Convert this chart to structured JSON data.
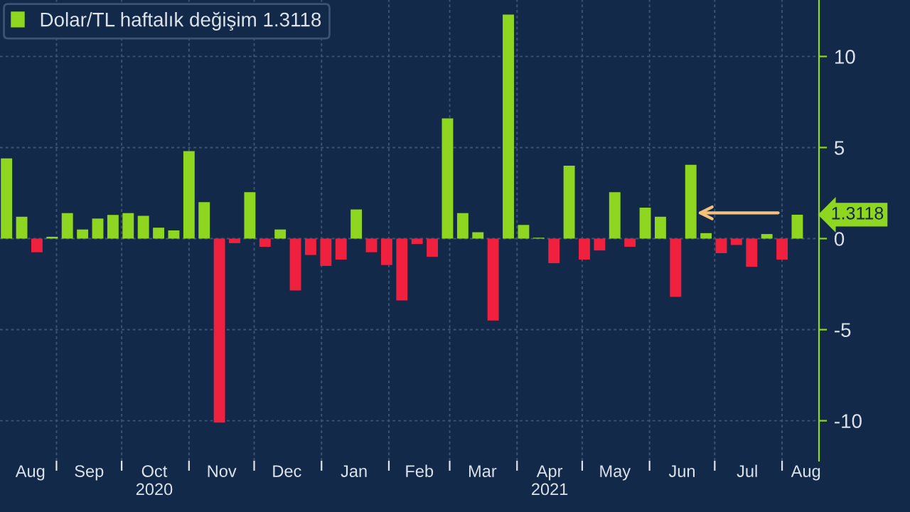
{
  "chart_data": {
    "type": "bar",
    "x": [
      "2020-08-09",
      "2020-08-16",
      "2020-08-23",
      "2020-08-30",
      "2020-09-06",
      "2020-09-13",
      "2020-09-20",
      "2020-09-27",
      "2020-10-04",
      "2020-10-11",
      "2020-10-18",
      "2020-10-25",
      "2020-11-01",
      "2020-11-08",
      "2020-11-15",
      "2020-11-22",
      "2020-11-29",
      "2020-12-06",
      "2020-12-13",
      "2020-12-20",
      "2020-12-27",
      "2021-01-03",
      "2021-01-10",
      "2021-01-17",
      "2021-01-24",
      "2021-01-31",
      "2021-02-07",
      "2021-02-14",
      "2021-02-21",
      "2021-02-28",
      "2021-03-07",
      "2021-03-14",
      "2021-03-21",
      "2021-03-28",
      "2021-04-04",
      "2021-04-11",
      "2021-04-18",
      "2021-04-25",
      "2021-05-02",
      "2021-05-09",
      "2021-05-16",
      "2021-05-23",
      "2021-05-30",
      "2021-06-06",
      "2021-06-13",
      "2021-06-20",
      "2021-06-27",
      "2021-07-04",
      "2021-07-11",
      "2021-07-18",
      "2021-07-25",
      "2021-08-01",
      "2021-08-08"
    ],
    "series": [
      {
        "name": "Dolar/TL haftalık değişim 1.3118",
        "color": "#8fd620",
        "colors": [
          "#8fd620",
          "#8fd620",
          "#f0203f",
          "#8fd620",
          "#8fd620",
          "#8fd620",
          "#8fd620",
          "#8fd620",
          "#8fd620",
          "#8fd620",
          "#8fd620",
          "#8fd620",
          "#8fd620",
          "#8fd620",
          "#f0203f",
          "#f0203f",
          "#8fd620",
          "#f0203f",
          "#8fd620",
          "#f0203f",
          "#f0203f",
          "#f0203f",
          "#f0203f",
          "#8fd620",
          "#f0203f",
          "#f0203f",
          "#f0203f",
          "#f0203f",
          "#f0203f",
          "#8fd620",
          "#8fd620",
          "#8fd620",
          "#f0203f",
          "#8fd620",
          "#8fd620",
          "#8fd620",
          "#f0203f",
          "#8fd620",
          "#f0203f",
          "#f0203f",
          "#8fd620",
          "#f0203f",
          "#8fd620",
          "#8fd620",
          "#f0203f",
          "#8fd620",
          "#8fd620",
          "#f0203f",
          "#f0203f",
          "#f0203f",
          "#8fd620",
          "#f0203f",
          "#8fd620"
        ],
        "values": [
          4.4,
          1.2,
          -0.75,
          0.1,
          1.4,
          0.5,
          1.1,
          1.3,
          1.4,
          1.25,
          0.6,
          0.45,
          4.8,
          2.0,
          -10.1,
          -0.25,
          2.55,
          -0.45,
          0.5,
          -2.85,
          -0.9,
          -1.5,
          -1.15,
          1.6,
          -0.75,
          -1.45,
          -3.4,
          -0.3,
          -1.0,
          6.6,
          1.4,
          0.35,
          -4.5,
          12.3,
          0.75,
          0.05,
          -1.35,
          4.0,
          -1.15,
          -0.65,
          2.55,
          -0.45,
          1.7,
          1.2,
          -3.2,
          4.05,
          0.3,
          -0.8,
          -0.35,
          -1.55,
          0.25,
          -1.15,
          1.3118
        ]
      }
    ],
    "xlim": [
      "2020-08-06",
      "2021-08-18"
    ],
    "xticks": [
      {
        "value": "2020-08-20",
        "label": "Aug"
      },
      {
        "value": "2020-09-01",
        "label": null
      },
      {
        "value": "2020-09-16",
        "label": "Sep"
      },
      {
        "value": "2020-10-01",
        "label": null
      },
      {
        "value": "2020-10-16",
        "label": "Oct\n2020"
      },
      {
        "value": "2020-11-01",
        "label": null
      },
      {
        "value": "2020-11-16",
        "label": "Nov"
      },
      {
        "value": "2020-12-01",
        "label": null
      },
      {
        "value": "2020-12-16",
        "label": "Dec"
      },
      {
        "value": "2021-01-01",
        "label": null
      },
      {
        "value": "2021-01-16",
        "label": "Jan"
      },
      {
        "value": "2021-02-01",
        "label": null
      },
      {
        "value": "2021-02-15",
        "label": "Feb"
      },
      {
        "value": "2021-03-01",
        "label": null
      },
      {
        "value": "2021-03-16",
        "label": "Mar"
      },
      {
        "value": "2021-04-01",
        "label": null
      },
      {
        "value": "2021-04-16",
        "label": "Apr\n2021"
      },
      {
        "value": "2021-05-01",
        "label": null
      },
      {
        "value": "2021-05-16",
        "label": "May"
      },
      {
        "value": "2021-06-01",
        "label": null
      },
      {
        "value": "2021-06-16",
        "label": "Jun"
      },
      {
        "value": "2021-07-01",
        "label": null
      },
      {
        "value": "2021-07-16",
        "label": "Jul"
      },
      {
        "value": "2021-08-01",
        "label": null
      },
      {
        "value": "2021-08-12",
        "label": "Aug"
      }
    ],
    "ylim": [
      -12.2,
      13.1
    ],
    "yticks": [
      -10,
      -5,
      0,
      5,
      10
    ],
    "grid": true,
    "legend": "top left",
    "annotations": [
      {
        "text": "1.3118",
        "x": "2021-08-08",
        "y": 1.3118
      }
    ]
  }
}
